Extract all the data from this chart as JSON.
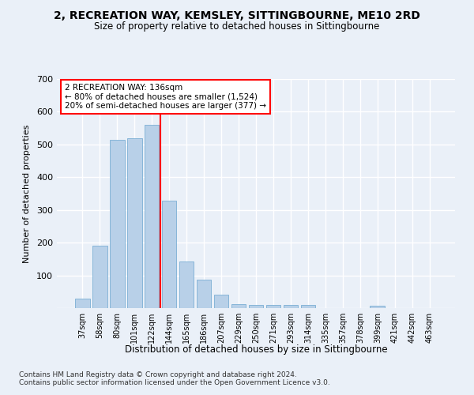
{
  "title": "2, RECREATION WAY, KEMSLEY, SITTINGBOURNE, ME10 2RD",
  "subtitle": "Size of property relative to detached houses in Sittingbourne",
  "xlabel": "Distribution of detached houses by size in Sittingbourne",
  "ylabel": "Number of detached properties",
  "categories": [
    "37sqm",
    "58sqm",
    "80sqm",
    "101sqm",
    "122sqm",
    "144sqm",
    "165sqm",
    "186sqm",
    "207sqm",
    "229sqm",
    "250sqm",
    "271sqm",
    "293sqm",
    "314sqm",
    "335sqm",
    "357sqm",
    "378sqm",
    "399sqm",
    "421sqm",
    "442sqm",
    "463sqm"
  ],
  "values": [
    30,
    190,
    515,
    520,
    560,
    328,
    142,
    88,
    40,
    13,
    10,
    10,
    10,
    10,
    0,
    0,
    0,
    7,
    0,
    0,
    0
  ],
  "bar_color": "#b8d0e8",
  "bar_edge_color": "#7aafd4",
  "vline_index": 4.5,
  "annotation_line1": "2 RECREATION WAY: 136sqm",
  "annotation_line2": "← 80% of detached houses are smaller (1,524)",
  "annotation_line3": "20% of semi-detached houses are larger (377) →",
  "footer_text": "Contains HM Land Registry data © Crown copyright and database right 2024.\nContains public sector information licensed under the Open Government Licence v3.0.",
  "bg_color": "#eaf0f8",
  "plot_bg_color": "#eaf0f8",
  "grid_color": "#ffffff",
  "ylim": [
    0,
    700
  ],
  "yticks": [
    0,
    100,
    200,
    300,
    400,
    500,
    600,
    700
  ]
}
